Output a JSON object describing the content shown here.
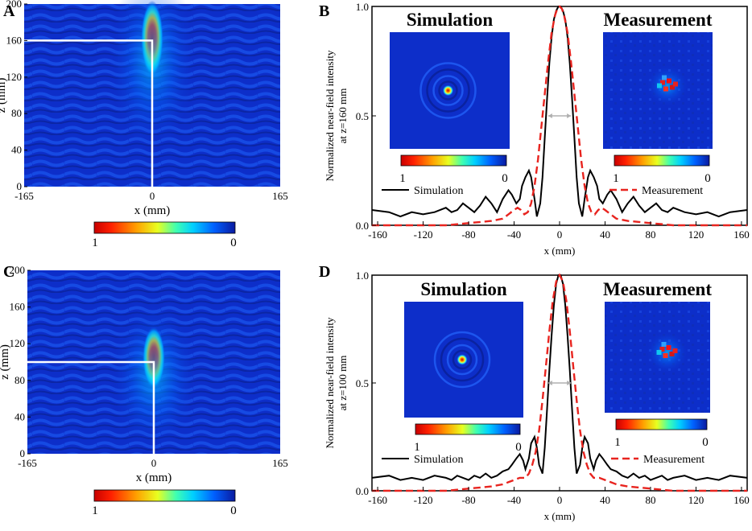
{
  "colors": {
    "simulation": "#000000",
    "measurement": "#e8241f",
    "marker": "#ffffff",
    "fwhm_arrow": "#b0b0b0",
    "map_background": "#0d2ec9"
  },
  "chart_data": [
    {
      "panel": "A",
      "type": "heatmap",
      "xlabel": "x (mm)",
      "ylabel": "z (mm)",
      "xticks": [
        "-165",
        "0",
        "165"
      ],
      "yticks": [
        "0",
        "40",
        "80",
        "120",
        "160",
        "200"
      ],
      "xlim": [
        -165,
        165
      ],
      "ylim": [
        0,
        200
      ],
      "focus_z": 160,
      "focus_x": 0,
      "hotspot_z_range": [
        130,
        195
      ],
      "colorbar": {
        "min_label": "1",
        "max_label": "0"
      }
    },
    {
      "panel": "B",
      "type": "line",
      "xlabel": "x (mm)",
      "ylabel_line1": "Normalized near-field intensity",
      "ylabel_line2": "at z=160 mm",
      "xlim": [
        -165,
        165
      ],
      "ylim": [
        0,
        1
      ],
      "xticks": [
        "-160",
        "-120",
        "-80",
        "-40",
        "0",
        "40",
        "80",
        "120",
        "160"
      ],
      "yticks": [
        "0.0",
        "0.5",
        "1.0"
      ],
      "inset_titles": [
        "Simulation",
        "Measurement"
      ],
      "colorbar": {
        "min_label": "1",
        "max_label": "0"
      },
      "fwhm_y": 0.5,
      "series": [
        {
          "name": "Simulation",
          "style": "solid",
          "x": [
            -165,
            -150,
            -140,
            -130,
            -120,
            -110,
            -100,
            -95,
            -90,
            -85,
            -80,
            -75,
            -70,
            -65,
            -60,
            -55,
            -50,
            -45,
            -42,
            -38,
            -35,
            -33,
            -30,
            -27,
            -25,
            -22,
            -20,
            -17,
            -15,
            -13,
            -11,
            -9,
            -7,
            -5,
            -3,
            -1,
            0,
            1,
            3,
            5,
            7,
            9,
            11,
            13,
            15,
            17,
            20,
            22,
            25,
            27,
            30,
            33,
            35,
            38,
            42,
            45,
            50,
            55,
            60,
            65,
            70,
            75,
            80,
            85,
            90,
            95,
            100,
            110,
            120,
            130,
            140,
            150,
            165
          ],
          "y": [
            0.07,
            0.06,
            0.04,
            0.06,
            0.05,
            0.06,
            0.08,
            0.06,
            0.07,
            0.1,
            0.08,
            0.06,
            0.09,
            0.13,
            0.1,
            0.06,
            0.12,
            0.16,
            0.14,
            0.1,
            0.12,
            0.18,
            0.22,
            0.25,
            0.22,
            0.12,
            0.04,
            0.1,
            0.22,
            0.4,
            0.58,
            0.74,
            0.86,
            0.94,
            0.98,
            1.0,
            1.0,
            1.0,
            0.98,
            0.94,
            0.86,
            0.74,
            0.58,
            0.4,
            0.22,
            0.1,
            0.04,
            0.12,
            0.22,
            0.25,
            0.22,
            0.18,
            0.12,
            0.1,
            0.14,
            0.16,
            0.12,
            0.06,
            0.1,
            0.13,
            0.09,
            0.06,
            0.08,
            0.1,
            0.07,
            0.06,
            0.08,
            0.06,
            0.05,
            0.06,
            0.04,
            0.06,
            0.07
          ]
        },
        {
          "name": "Measurement",
          "style": "dashed",
          "x": [
            -165,
            -100,
            -80,
            -60,
            -50,
            -45,
            -40,
            -37,
            -34,
            -31,
            -28,
            -25,
            -22,
            -19,
            -16,
            -13,
            -10,
            -7,
            -4,
            -2,
            0,
            2,
            4,
            7,
            10,
            13,
            16,
            19,
            22,
            25,
            28,
            31,
            34,
            37,
            40,
            45,
            50,
            60,
            80,
            100,
            165
          ],
          "y": [
            0.0,
            0.0,
            0.01,
            0.02,
            0.03,
            0.05,
            0.07,
            0.08,
            0.07,
            0.05,
            0.06,
            0.1,
            0.18,
            0.3,
            0.45,
            0.6,
            0.75,
            0.88,
            0.96,
            0.99,
            1.0,
            0.99,
            0.96,
            0.88,
            0.75,
            0.6,
            0.45,
            0.3,
            0.18,
            0.1,
            0.06,
            0.05,
            0.07,
            0.08,
            0.07,
            0.05,
            0.03,
            0.02,
            0.01,
            0.0,
            0.0
          ]
        }
      ]
    },
    {
      "panel": "C",
      "type": "heatmap",
      "xlabel": "x (mm)",
      "ylabel": "z (mm)",
      "xticks": [
        "-165",
        "0",
        "165"
      ],
      "yticks": [
        "0",
        "40",
        "80",
        "120",
        "160",
        "200"
      ],
      "xlim": [
        -165,
        165
      ],
      "ylim": [
        0,
        200
      ],
      "focus_z": 100,
      "focus_x": 0,
      "hotspot_z_range": [
        80,
        130
      ],
      "colorbar": {
        "min_label": "1",
        "max_label": "0"
      }
    },
    {
      "panel": "D",
      "type": "line",
      "xlabel": "x (mm)",
      "ylabel_line1": "Normalized near-field intensity",
      "ylabel_line2": "at z=100 mm",
      "xlim": [
        -165,
        165
      ],
      "ylim": [
        0,
        1
      ],
      "xticks": [
        "-160",
        "-120",
        "-80",
        "-40",
        "0",
        "40",
        "80",
        "120",
        "160"
      ],
      "yticks": [
        "0.0",
        "0.5",
        "1.0"
      ],
      "inset_titles": [
        "Simulation",
        "Measurement"
      ],
      "colorbar": {
        "min_label": "1",
        "max_label": "0"
      },
      "fwhm_y": 0.5,
      "series": [
        {
          "name": "Simulation",
          "style": "solid",
          "x": [
            -165,
            -150,
            -140,
            -130,
            -120,
            -110,
            -100,
            -95,
            -90,
            -85,
            -80,
            -75,
            -70,
            -65,
            -60,
            -55,
            -50,
            -45,
            -42,
            -38,
            -35,
            -32,
            -30,
            -27,
            -25,
            -22,
            -20,
            -18,
            -15,
            -13,
            -11,
            -9,
            -7,
            -5,
            -3,
            -1,
            0,
            1,
            3,
            5,
            7,
            9,
            11,
            13,
            15,
            18,
            20,
            22,
            25,
            27,
            30,
            32,
            35,
            38,
            42,
            45,
            50,
            55,
            60,
            65,
            70,
            75,
            80,
            85,
            90,
            95,
            100,
            110,
            120,
            130,
            140,
            150,
            165
          ],
          "y": [
            0.06,
            0.07,
            0.05,
            0.06,
            0.05,
            0.07,
            0.06,
            0.05,
            0.07,
            0.06,
            0.05,
            0.07,
            0.06,
            0.08,
            0.06,
            0.07,
            0.09,
            0.1,
            0.12,
            0.15,
            0.17,
            0.14,
            0.1,
            0.15,
            0.22,
            0.25,
            0.2,
            0.12,
            0.08,
            0.2,
            0.38,
            0.56,
            0.72,
            0.86,
            0.96,
            1.0,
            1.0,
            1.0,
            0.96,
            0.86,
            0.72,
            0.56,
            0.38,
            0.2,
            0.08,
            0.12,
            0.2,
            0.25,
            0.22,
            0.15,
            0.1,
            0.14,
            0.17,
            0.15,
            0.12,
            0.1,
            0.09,
            0.07,
            0.06,
            0.08,
            0.06,
            0.07,
            0.05,
            0.06,
            0.07,
            0.05,
            0.06,
            0.07,
            0.05,
            0.06,
            0.05,
            0.07,
            0.06
          ]
        },
        {
          "name": "Measurement",
          "style": "dashed",
          "x": [
            -165,
            -100,
            -80,
            -60,
            -50,
            -45,
            -40,
            -35,
            -30,
            -27,
            -24,
            -21,
            -18,
            -15,
            -12,
            -9,
            -6,
            -3,
            0,
            3,
            6,
            9,
            12,
            15,
            18,
            21,
            24,
            27,
            30,
            35,
            40,
            45,
            50,
            60,
            80,
            100,
            165
          ],
          "y": [
            0.0,
            0.0,
            0.01,
            0.02,
            0.03,
            0.04,
            0.05,
            0.06,
            0.06,
            0.08,
            0.12,
            0.18,
            0.28,
            0.42,
            0.58,
            0.74,
            0.88,
            0.97,
            1.0,
            0.97,
            0.88,
            0.74,
            0.58,
            0.42,
            0.28,
            0.18,
            0.12,
            0.08,
            0.06,
            0.06,
            0.05,
            0.04,
            0.03,
            0.02,
            0.01,
            0.0,
            0.0
          ]
        }
      ]
    }
  ]
}
